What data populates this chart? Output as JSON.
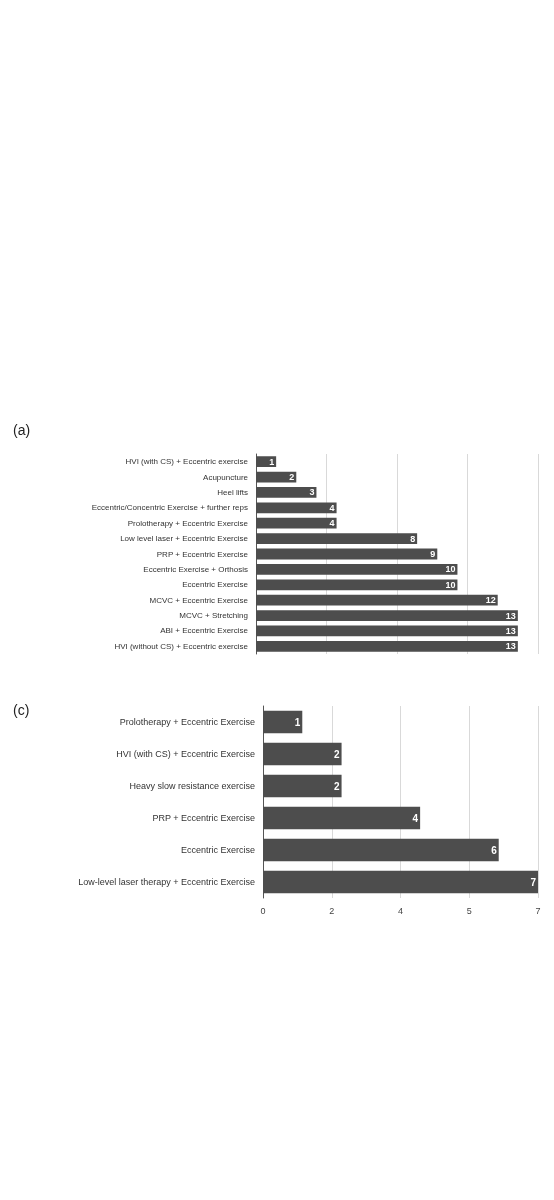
{
  "chart_data": [
    {
      "type": "bar",
      "orientation": "horizontal",
      "title": "(a)",
      "categories": [
        "HVI (with CS) + Eccentric exercise",
        "Acupuncture",
        "Heel lifts",
        "Eccentric/Concentric Exercise + further reps",
        "Prolotherapy + Eccentric Exercise",
        "Low level laser + Eccentric Exercise",
        "PRP + Eccentric Exercise",
        "Eccentric Exercise + Orthosis",
        "Eccentric Exercise",
        "MCVC + Eccentric Exercise",
        "MCVC + Stretching",
        "ABI + Eccentric Exercise",
        "HVI (without CS) + Eccentric exercise"
      ],
      "values": [
        1,
        2,
        3,
        4,
        4,
        8,
        9,
        10,
        10,
        12,
        13,
        13,
        13
      ],
      "color": "#4d4d4d",
      "data_labels": true,
      "xlim": [
        0,
        14
      ],
      "xticks": [
        {
          "value": 0,
          "label": null
        },
        {
          "value": 3.5,
          "label": null
        },
        {
          "value": 7,
          "label": null
        },
        {
          "value": 10.5,
          "label": null
        },
        {
          "value": 14,
          "label": null
        }
      ],
      "grid": "x",
      "tick_labels": "y"
    },
    {
      "type": "bar",
      "orientation": "horizontal",
      "title": "(c)",
      "categories": [
        "Prolotherapy + Eccentric Exercise",
        "HVI (with CS) + Eccentric Exercise",
        "Heavy slow resistance exercise",
        "PRP + Eccentric Exercise",
        "Eccentric Exercise",
        "Low-level laser therapy + Eccentric Exercise"
      ],
      "values": [
        1,
        2,
        2,
        4,
        6,
        7
      ],
      "color": "#4d4d4d",
      "data_labels": true,
      "xlim": [
        0,
        7
      ],
      "xticks": [
        0,
        {
          "value": 1.75,
          "label": "2"
        },
        {
          "value": 3.5,
          "label": "4"
        },
        {
          "value": 5.25,
          "label": "5"
        },
        7
      ],
      "grid": "x"
    }
  ]
}
